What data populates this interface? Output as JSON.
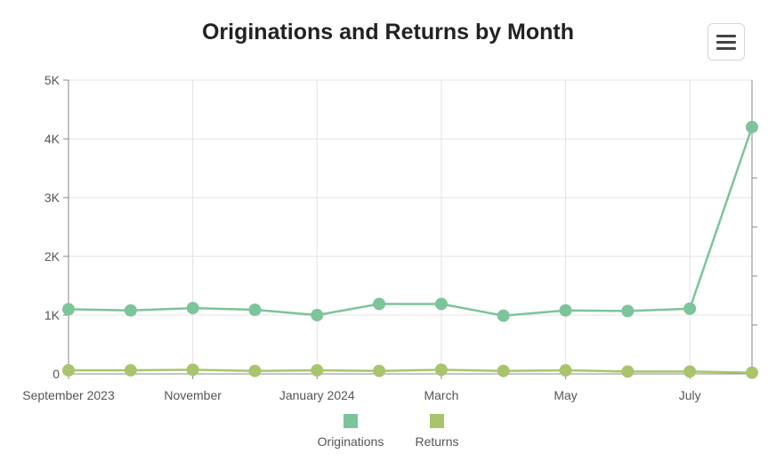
{
  "chart_data": {
    "type": "line",
    "title": "Originations and Returns by Month",
    "x": [
      "2023-09",
      "2023-10",
      "2023-11",
      "2023-12",
      "2024-01",
      "2024-02",
      "2024-03",
      "2024-04",
      "2024-05",
      "2024-06",
      "2024-07",
      "2024-08"
    ],
    "x_tick_labels": [
      {
        "x": "2023-09",
        "label": "September 2023"
      },
      {
        "x": "2023-11",
        "label": "November"
      },
      {
        "x": "2024-01",
        "label": "January 2024"
      },
      {
        "x": "2024-03",
        "label": "March"
      },
      {
        "x": "2024-05",
        "label": "May"
      },
      {
        "x": "2024-07",
        "label": "July"
      }
    ],
    "ylim": [
      0,
      5000
    ],
    "y_ticks": [
      {
        "value": 0,
        "label": "0"
      },
      {
        "value": 1000,
        "label": "1K"
      },
      {
        "value": 2000,
        "label": "2K"
      },
      {
        "value": 3000,
        "label": "3K"
      },
      {
        "value": 4000,
        "label": "4K"
      },
      {
        "value": 5000,
        "label": "5K"
      }
    ],
    "series": [
      {
        "name": "Originations",
        "color": "#7cc49a",
        "values": [
          1100,
          1080,
          1120,
          1090,
          1000,
          1190,
          1190,
          990,
          1080,
          1070,
          1110,
          4200
        ]
      },
      {
        "name": "Returns",
        "color": "#a8c56e",
        "values": [
          60,
          60,
          70,
          50,
          60,
          50,
          70,
          50,
          60,
          40,
          40,
          20
        ]
      }
    ],
    "grid": true,
    "legend_position": "bottom"
  },
  "ui": {
    "menu_icon": "hamburger-menu-icon"
  }
}
